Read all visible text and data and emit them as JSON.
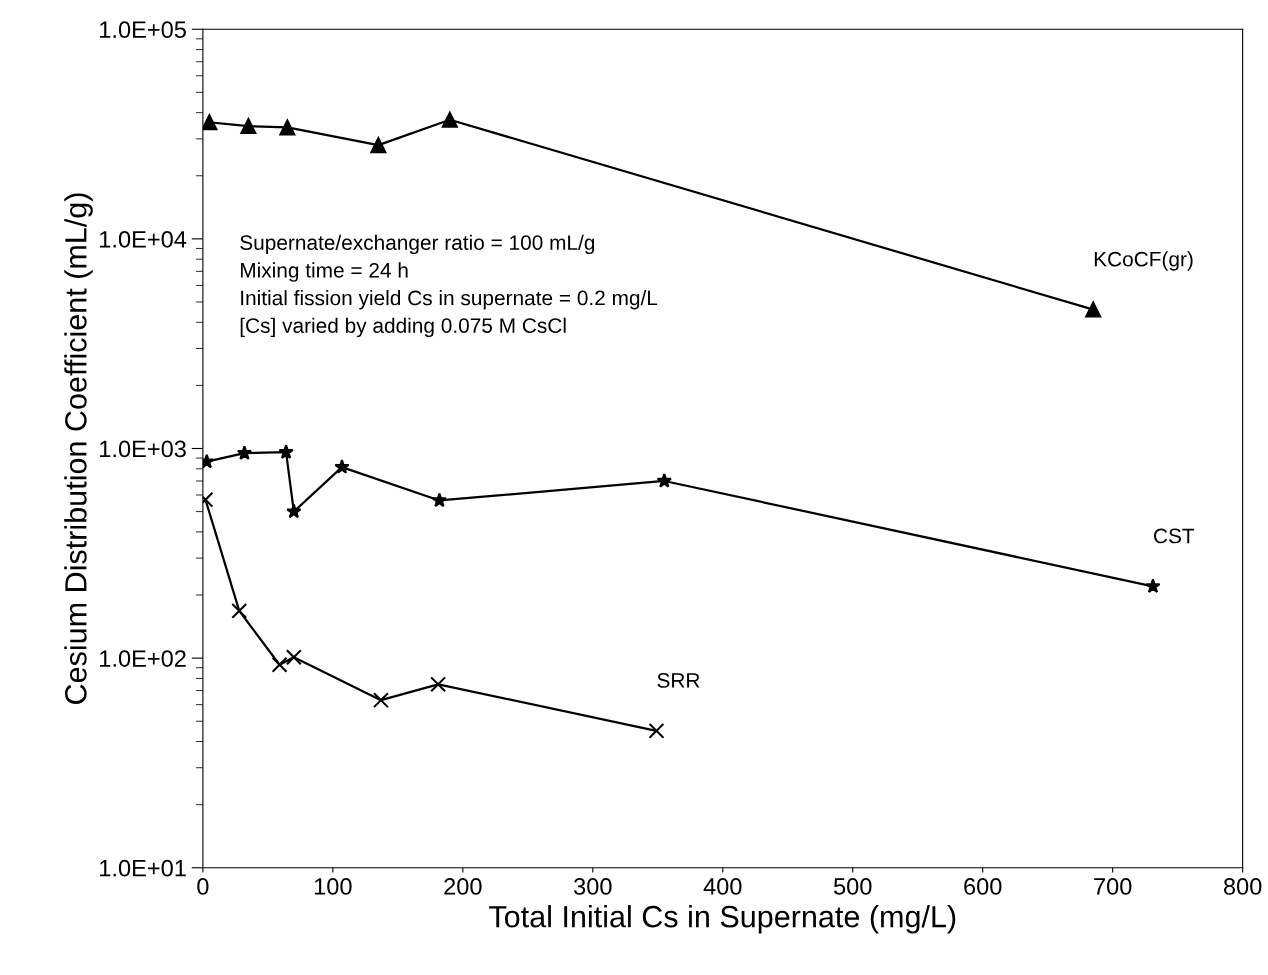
{
  "chart_data": {
    "type": "line",
    "xlabel": "Total Initial Cs in Supernate (mg/L)",
    "ylabel": "Cesium Distribution Coefficient (mL/g)",
    "log": "y",
    "xlim": [
      0,
      800
    ],
    "xticks": [
      0,
      100,
      200,
      300,
      400,
      500,
      600,
      700,
      800
    ],
    "ylim": [
      10,
      100000
    ],
    "yticks": [
      {
        "value": 10,
        "label": "1.0E+01"
      },
      {
        "value": 100,
        "label": "1.0E+02"
      },
      {
        "value": 1000,
        "label": "1.0E+03"
      },
      {
        "value": 10000,
        "label": "1.0E+04"
      },
      {
        "value": 100000,
        "label": "1.0E+05"
      }
    ],
    "grid": false,
    "legend": false,
    "line_style": "solid",
    "series": [
      {
        "name": "KCoCF(gr)",
        "color": "#000000",
        "marker": "triangle",
        "x": [
          5,
          35,
          65,
          135,
          190,
          685
        ],
        "values": [
          36000,
          34500,
          34000,
          28000,
          37000,
          4600
        ]
      },
      {
        "name": "CST",
        "color": "#000000",
        "marker": "star",
        "x": [
          3,
          32,
          64,
          70,
          107,
          182,
          355,
          731
        ],
        "values": [
          865,
          950,
          960,
          500,
          815,
          565,
          700,
          220
        ]
      },
      {
        "name": "SRR",
        "color": "#000000",
        "marker": "cross",
        "x": [
          2,
          28,
          59,
          70,
          137,
          181,
          349
        ],
        "values": [
          570,
          168,
          93,
          101,
          63,
          75,
          45
        ]
      }
    ],
    "annotations": [
      "Supernate/exchanger ratio = 100 mL/g",
      "Mixing time = 24 h",
      "Initial fission yield Cs in supernate = 0.2 mg/L",
      "[Cs] varied by adding 0.075 M CsCl"
    ]
  }
}
